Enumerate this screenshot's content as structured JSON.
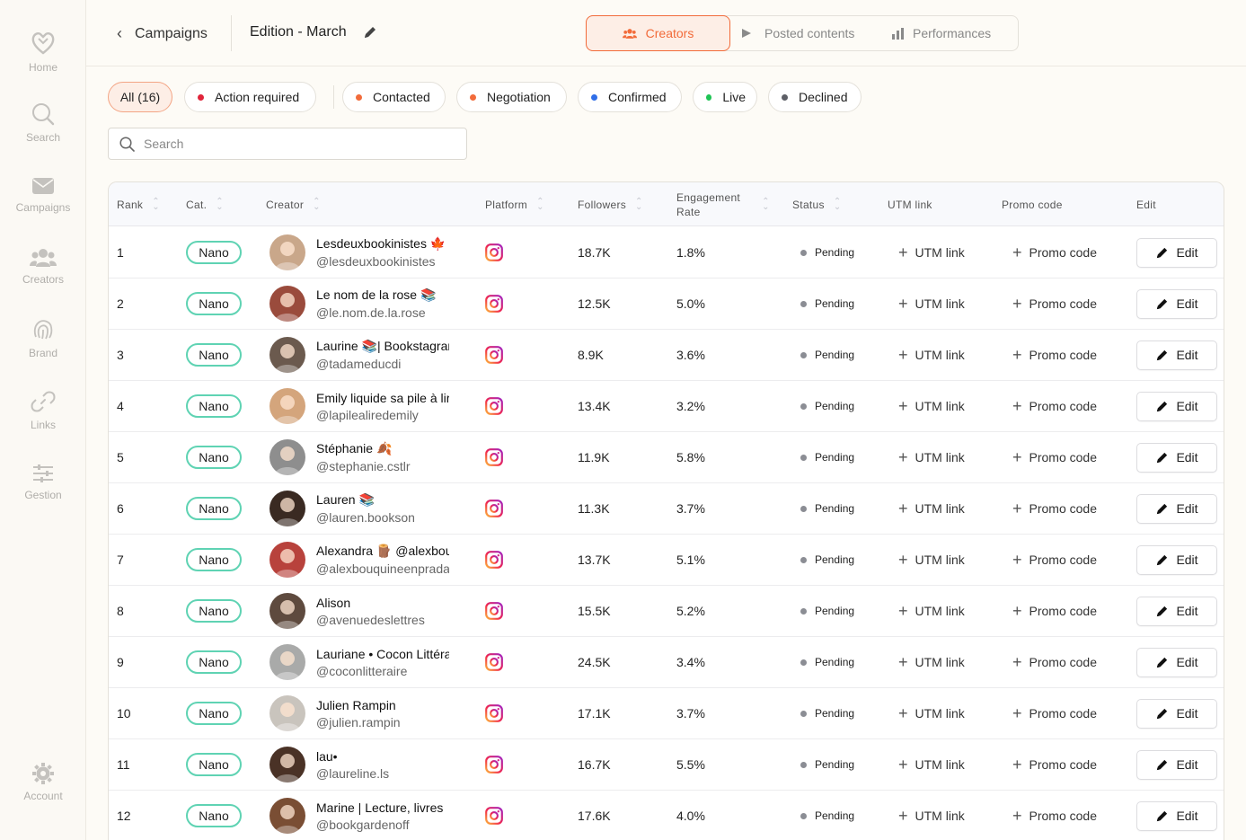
{
  "sidebar": {
    "items": [
      {
        "label": "Home",
        "icon": "heart-logo-icon"
      },
      {
        "label": "Search",
        "icon": "search-icon"
      },
      {
        "label": "Campaigns",
        "icon": "mail-icon"
      },
      {
        "label": "Creators",
        "icon": "users-icon"
      },
      {
        "label": "Brand",
        "icon": "fingerprint-icon"
      },
      {
        "label": "Links",
        "icon": "link-icon"
      },
      {
        "label": "Gestion",
        "icon": "sliders-icon"
      }
    ],
    "account": {
      "label": "Account",
      "icon": "gear-icon"
    }
  },
  "header": {
    "back_label": "Campaigns",
    "edition_title": "Edition - March",
    "tabs": [
      {
        "label": "Creators",
        "icon": "users-icon",
        "active": true
      },
      {
        "label": "Posted contents",
        "icon": "play-icon",
        "active": false
      },
      {
        "label": "Performances",
        "icon": "bar-chart-icon",
        "active": false
      }
    ]
  },
  "colors": {
    "accent": "#f26b3a",
    "nano_badge": "#5fd3b3",
    "action_required": "#e0243a",
    "contacted": "#f26b3a",
    "negotiation": "#f26b3a",
    "confirmed": "#2f6ee8",
    "live": "#1fc455",
    "declined": "#5d5f66"
  },
  "filters": [
    {
      "label": "All (16)",
      "active": true
    },
    {
      "label": "Action required",
      "dot": "#e0243a"
    },
    {
      "label": "Contacted",
      "dot": "#f26b3a"
    },
    {
      "label": "Negotiation",
      "dot": "#f26b3a"
    },
    {
      "label": "Confirmed",
      "dot": "#2f6ee8"
    },
    {
      "label": "Live",
      "dot": "#1fc455"
    },
    {
      "label": "Declined",
      "dot": "#5d5f66"
    }
  ],
  "search": {
    "placeholder": "Search"
  },
  "table": {
    "columns": [
      "Rank",
      "Cat.",
      "Creator",
      "Platform",
      "Followers",
      "Engagement Rate",
      "Status",
      "UTM link",
      "Promo code",
      "Edit"
    ],
    "engagement_line1": "Engagement",
    "engagement_line2": "Rate",
    "utm_label": "UTM link",
    "promo_label": "Promo code",
    "edit_label": "Edit",
    "rows": [
      {
        "rank": "1",
        "cat": "Nano",
        "name": "Lesdeuxbookinistes 🍁",
        "handle": "@lesdeuxbookinistes",
        "platform": "instagram-icon",
        "followers": "18.7K",
        "engagement": "1.8%",
        "status": "Pending",
        "avatar_color": "#c9a78a"
      },
      {
        "rank": "2",
        "cat": "Nano",
        "name": "Le nom de la rose 📚",
        "handle": "@le.nom.de.la.rose",
        "platform": "instagram-icon",
        "followers": "12.5K",
        "engagement": "5.0%",
        "status": "Pending",
        "avatar_color": "#9a4b3c"
      },
      {
        "rank": "3",
        "cat": "Nano",
        "name": "Laurine 📚| Bookstagram",
        "handle": "@tadameducdi",
        "platform": "instagram-icon",
        "followers": "8.9K",
        "engagement": "3.6%",
        "status": "Pending",
        "avatar_color": "#6b5a4e"
      },
      {
        "rank": "4",
        "cat": "Nano",
        "name": "Emily liquide sa pile à lire",
        "handle": "@lapilealiredemily",
        "platform": "instagram-icon",
        "followers": "13.4K",
        "engagement": "3.2%",
        "status": "Pending",
        "avatar_color": "#d4a57c"
      },
      {
        "rank": "5",
        "cat": "Nano",
        "name": "Stéphanie 🍂",
        "handle": "@stephanie.cstlr",
        "platform": "instagram-icon",
        "followers": "11.9K",
        "engagement": "5.8%",
        "status": "Pending",
        "avatar_color": "#8e8e8e"
      },
      {
        "rank": "6",
        "cat": "Nano",
        "name": "Lauren 📚",
        "handle": "@lauren.bookson",
        "platform": "instagram-icon",
        "followers": "11.3K",
        "engagement": "3.7%",
        "status": "Pending",
        "avatar_color": "#3a2a22"
      },
      {
        "rank": "7",
        "cat": "Nano",
        "name": "Alexandra 🪵 @alexbouquine",
        "handle": "@alexbouquineenprada",
        "platform": "instagram-icon",
        "followers": "13.7K",
        "engagement": "5.1%",
        "status": "Pending",
        "avatar_color": "#b8423c"
      },
      {
        "rank": "8",
        "cat": "Nano",
        "name": "Alison",
        "handle": "@avenuedeslettres",
        "platform": "instagram-icon",
        "followers": "15.5K",
        "engagement": "5.2%",
        "status": "Pending",
        "avatar_color": "#5e4a3e"
      },
      {
        "rank": "9",
        "cat": "Nano",
        "name": "Lauriane • Cocon Littéraire",
        "handle": "@coconlitteraire",
        "platform": "instagram-icon",
        "followers": "24.5K",
        "engagement": "3.4%",
        "status": "Pending",
        "avatar_color": "#a9aaa9"
      },
      {
        "rank": "10",
        "cat": "Nano",
        "name": "Julien Rampin",
        "handle": "@julien.rampin",
        "platform": "instagram-icon",
        "followers": "17.1K",
        "engagement": "3.7%",
        "status": "Pending",
        "avatar_color": "#c9c4bd"
      },
      {
        "rank": "11",
        "cat": "Nano",
        "name": "lau•",
        "handle": "@laureline.ls",
        "platform": "instagram-icon",
        "followers": "16.7K",
        "engagement": "5.5%",
        "status": "Pending",
        "avatar_color": "#4a3226"
      },
      {
        "rank": "12",
        "cat": "Nano",
        "name": "Marine | Lecture, livres",
        "handle": "@bookgardenoff",
        "platform": "instagram-icon",
        "followers": "17.6K",
        "engagement": "4.0%",
        "status": "Pending",
        "avatar_color": "#7a4e34"
      }
    ]
  }
}
